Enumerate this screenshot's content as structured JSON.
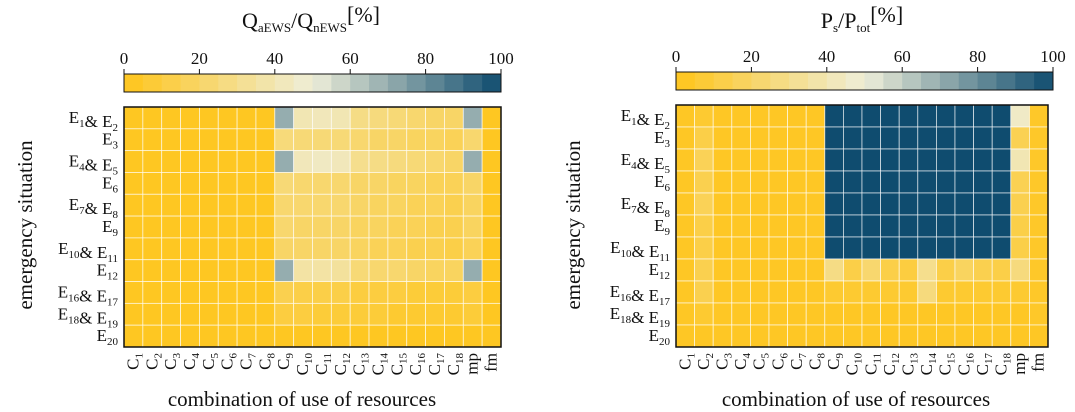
{
  "chart_data": [
    {
      "type": "heatmap",
      "colorbar": {
        "title_main": "Q",
        "title_sub1": "aEWS",
        "title_mid": "/Q",
        "title_sub2": "nEWS",
        "title_unit": "[%]",
        "ticks": [
          "0",
          "20",
          "40",
          "60",
          "80",
          "100"
        ],
        "range": [
          0,
          100
        ]
      },
      "ylabel": "emergency situation",
      "xlabel": "combination of use of resources",
      "grid": true,
      "columns": [
        "C1",
        "C2",
        "C3",
        "C4",
        "C5",
        "C6",
        "C7",
        "C8",
        "C9",
        "C10",
        "C11",
        "C12",
        "C13",
        "C14",
        "C15",
        "C16",
        "C17",
        "C18",
        "mp",
        "fm"
      ],
      "rows": [
        "E1&E2",
        "E3",
        "E4&E5",
        "E6",
        "E7&E8",
        "E9",
        "E10&E11",
        "E12",
        "E16&E17",
        "E18&E19",
        "E20"
      ],
      "values": [
        [
          2,
          2,
          2,
          2,
          2,
          2,
          2,
          2,
          70,
          40,
          42,
          40,
          28,
          26,
          24,
          22,
          20,
          20,
          70,
          2
        ],
        [
          2,
          2,
          2,
          2,
          2,
          2,
          2,
          2,
          25,
          24,
          24,
          24,
          22,
          20,
          20,
          18,
          18,
          16,
          22,
          2
        ],
        [
          2,
          2,
          2,
          2,
          2,
          2,
          2,
          2,
          70,
          42,
          44,
          42,
          30,
          28,
          26,
          24,
          22,
          20,
          70,
          2
        ],
        [
          2,
          2,
          2,
          2,
          2,
          2,
          2,
          2,
          24,
          22,
          22,
          22,
          20,
          20,
          18,
          18,
          16,
          16,
          20,
          2
        ],
        [
          2,
          2,
          2,
          2,
          2,
          2,
          2,
          2,
          22,
          22,
          22,
          22,
          20,
          18,
          18,
          16,
          16,
          14,
          18,
          2
        ],
        [
          2,
          2,
          2,
          2,
          2,
          2,
          2,
          2,
          22,
          20,
          20,
          20,
          18,
          18,
          16,
          16,
          14,
          14,
          18,
          2
        ],
        [
          2,
          2,
          2,
          2,
          2,
          2,
          2,
          2,
          20,
          20,
          20,
          20,
          18,
          16,
          16,
          14,
          14,
          12,
          16,
          2
        ],
        [
          2,
          2,
          2,
          2,
          2,
          2,
          2,
          2,
          70,
          36,
          36,
          34,
          24,
          22,
          22,
          20,
          18,
          18,
          70,
          2
        ],
        [
          2,
          2,
          2,
          2,
          2,
          2,
          2,
          2,
          14,
          12,
          12,
          12,
          10,
          10,
          10,
          8,
          8,
          8,
          10,
          2
        ],
        [
          2,
          2,
          2,
          2,
          2,
          2,
          2,
          2,
          10,
          10,
          8,
          8,
          8,
          8,
          6,
          6,
          6,
          6,
          8,
          2
        ],
        [
          2,
          2,
          2,
          2,
          2,
          2,
          2,
          2,
          2,
          2,
          2,
          2,
          2,
          2,
          2,
          2,
          2,
          2,
          2,
          2
        ]
      ]
    },
    {
      "type": "heatmap",
      "colorbar": {
        "title_main": "P",
        "title_sub1": "s",
        "title_mid": "/P",
        "title_sub2": "tot",
        "title_unit": "[%]",
        "ticks": [
          "0",
          "20",
          "40",
          "60",
          "80",
          "100"
        ],
        "range": [
          0,
          100
        ]
      },
      "ylabel": "emergency situation",
      "xlabel": "combination of use of resources",
      "grid": true,
      "columns": [
        "C1",
        "C2",
        "C3",
        "C4",
        "C5",
        "C6",
        "C7",
        "C8",
        "C9",
        "C10",
        "C11",
        "C12",
        "C13",
        "C14",
        "C15",
        "C16",
        "C17",
        "C18",
        "mp",
        "fm"
      ],
      "rows": [
        "E1&E2",
        "E3",
        "E4&E5",
        "E6",
        "E7&E8",
        "E9",
        "E10&E11",
        "E12",
        "E16&E17",
        "E18&E19",
        "E20"
      ],
      "values": [
        [
          3,
          6,
          3,
          3,
          3,
          3,
          3,
          3,
          100,
          100,
          100,
          100,
          100,
          100,
          100,
          100,
          100,
          100,
          45,
          4
        ],
        [
          3,
          12,
          3,
          3,
          3,
          3,
          3,
          3,
          100,
          100,
          100,
          100,
          100,
          100,
          100,
          100,
          100,
          100,
          15,
          4
        ],
        [
          3,
          16,
          3,
          3,
          3,
          3,
          3,
          3,
          100,
          100,
          100,
          100,
          100,
          100,
          100,
          100,
          100,
          100,
          40,
          4
        ],
        [
          3,
          14,
          3,
          3,
          3,
          3,
          3,
          3,
          100,
          100,
          100,
          100,
          100,
          100,
          100,
          100,
          100,
          100,
          15,
          4
        ],
        [
          3,
          16,
          3,
          3,
          3,
          3,
          3,
          3,
          100,
          100,
          100,
          100,
          100,
          100,
          100,
          100,
          100,
          100,
          14,
          4
        ],
        [
          3,
          12,
          3,
          3,
          3,
          3,
          3,
          3,
          100,
          100,
          100,
          100,
          100,
          100,
          100,
          100,
          100,
          100,
          12,
          4
        ],
        [
          3,
          12,
          3,
          3,
          3,
          3,
          3,
          3,
          100,
          100,
          100,
          100,
          100,
          100,
          100,
          100,
          100,
          100,
          12,
          4
        ],
        [
          3,
          14,
          3,
          3,
          3,
          3,
          3,
          3,
          28,
          12,
          22,
          12,
          10,
          30,
          12,
          18,
          14,
          12,
          26,
          4
        ],
        [
          3,
          14,
          3,
          3,
          3,
          3,
          3,
          3,
          6,
          6,
          6,
          6,
          6,
          26,
          6,
          6,
          6,
          6,
          6,
          4
        ],
        [
          3,
          6,
          3,
          3,
          3,
          3,
          3,
          3,
          3,
          3,
          3,
          3,
          3,
          3,
          3,
          3,
          3,
          3,
          3,
          4
        ],
        [
          3,
          3,
          3,
          3,
          3,
          3,
          3,
          3,
          3,
          3,
          3,
          3,
          3,
          3,
          3,
          3,
          3,
          3,
          3,
          3
        ]
      ]
    }
  ],
  "colorscale": [
    "#ffc51a",
    "#eeeed9",
    "#0f4c6f"
  ]
}
